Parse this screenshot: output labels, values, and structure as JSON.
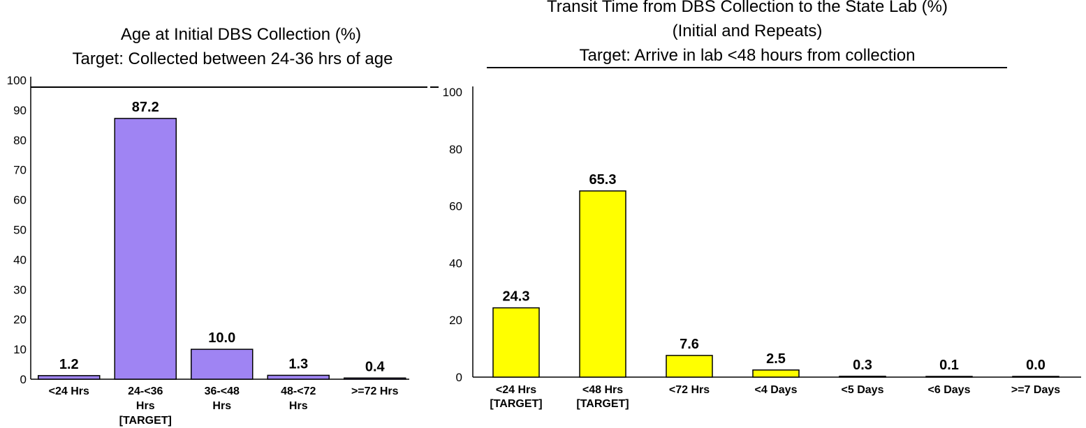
{
  "chart_data": [
    {
      "type": "bar",
      "title": "Age at Initial DBS Collection (%)",
      "subtitle": "Target: Collected between 24-36 hrs of age",
      "categories": [
        [
          "<24 Hrs"
        ],
        [
          "24-<36",
          "Hrs",
          "[TARGET]"
        ],
        [
          "36-<48",
          "Hrs"
        ],
        [
          "48-<72",
          "Hrs"
        ],
        [
          ">=72 Hrs"
        ]
      ],
      "values": [
        1.2,
        87.2,
        10.0,
        1.3,
        0.4
      ],
      "value_labels": [
        "1.2",
        "87.2",
        "10.0",
        "1.3",
        "0.4"
      ],
      "ylim": [
        0,
        100
      ],
      "yticks": [
        "0",
        "10",
        "20",
        "30",
        "40",
        "50",
        "60",
        "70",
        "80",
        "90",
        "100"
      ],
      "bar_color": "#9F84F3",
      "grid": false,
      "legend": "none"
    },
    {
      "type": "bar",
      "title": "Transit Time from DBS Collection to the State Lab (%)",
      "subtitle": "(Initial and Repeats)",
      "subtitle2": "Target: Arrive in lab <48 hours from collection",
      "categories": [
        [
          "<24 Hrs",
          "[TARGET]"
        ],
        [
          "<48 Hrs",
          "[TARGET]"
        ],
        [
          "<72 Hrs"
        ],
        [
          "<4 Days"
        ],
        [
          "<5 Days"
        ],
        [
          "<6 Days"
        ],
        [
          ">=7 Days"
        ]
      ],
      "values": [
        24.3,
        65.3,
        7.6,
        2.5,
        0.3,
        0.1,
        0.0
      ],
      "value_labels": [
        "24.3",
        "65.3",
        "7.6",
        "2.5",
        "0.3",
        "0.1",
        "0.0"
      ],
      "ylim": [
        0,
        100
      ],
      "yticks": [
        "0",
        "20",
        "40",
        "60",
        "80",
        "100"
      ],
      "bar_color": "#FFFF00",
      "grid": false,
      "legend": "none"
    }
  ]
}
